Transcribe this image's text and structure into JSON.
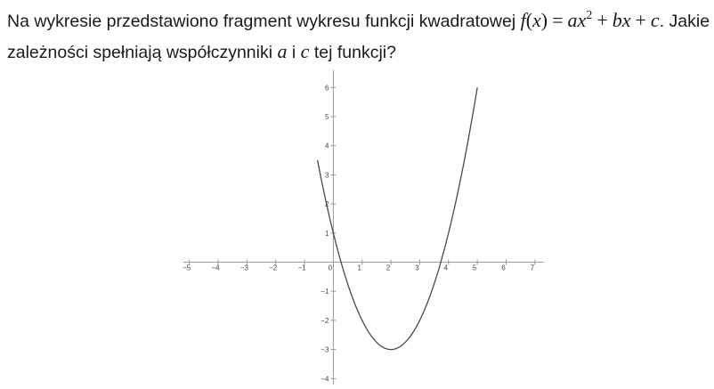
{
  "question": {
    "text_before": "Na wykresie przedstawiono fragment wykresu funkcji kwadratowej ",
    "formula": {
      "f": "f",
      "lparen": "(",
      "var": "x",
      "rparen": ")",
      "eq": "=",
      "a": "a",
      "x1": "x",
      "exp": "2",
      "plus1": "+",
      "b": "b",
      "x2": "x",
      "plus2": "+",
      "c": "c"
    },
    "text_after_c": ". Jakie zależności spełniają współczynniki ",
    "coef_a": "a",
    "conj": " i ",
    "coef_c": "c",
    "text_end": " tej funkcji?"
  },
  "chart_data": {
    "type": "line",
    "function": "y = (x - 2)^2 - 3",
    "series": [
      {
        "x": [
          -0.55,
          -0.25,
          0,
          0.27,
          0.5,
          1,
          1.5,
          2,
          2.5,
          3,
          3.5,
          3.73,
          4,
          4.5,
          5
        ],
        "y": [
          3.5,
          2.06,
          1,
          0,
          -0.75,
          -2,
          -2.75,
          -3,
          -2.75,
          -2,
          -0.75,
          0,
          1,
          3.25,
          6
        ]
      }
    ],
    "x_ticks": [
      "−5",
      "−4",
      "−3",
      "−2",
      "−1",
      "0",
      "1",
      "2",
      "3",
      "4",
      "5",
      "6",
      "7"
    ],
    "y_ticks": [
      "6",
      "5",
      "4",
      "3",
      "2",
      "1",
      "−1",
      "−2",
      "−3",
      "−4"
    ],
    "xlim": [
      -5.2,
      7.3
    ],
    "ylim": [
      -4.2,
      6.6
    ],
    "grid": false,
    "curve_color": "#4a4a4a",
    "axis_color": "#9a9a9a"
  }
}
